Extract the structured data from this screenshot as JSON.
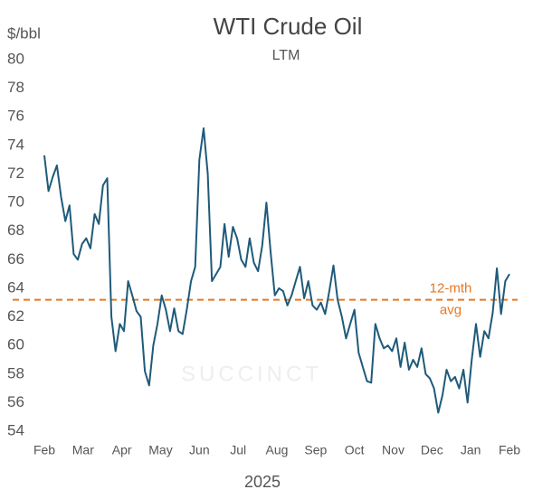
{
  "chart_data": {
    "type": "line",
    "title": "WTI Crude Oil",
    "subtitle": "LTM",
    "y_axis_label": "$/bbl",
    "x_axis_label": "2025",
    "watermark": "SUCCINCT",
    "xticks": [
      "Feb",
      "Mar",
      "Apr",
      "May",
      "Jun",
      "Jul",
      "Aug",
      "Sep",
      "Oct",
      "Nov",
      "Dec",
      "Jan",
      "Feb"
    ],
    "ylim": [
      54,
      80
    ],
    "yticks": [
      54,
      56,
      58,
      60,
      62,
      64,
      66,
      68,
      70,
      72,
      74,
      76,
      78,
      80
    ],
    "grid": false,
    "series": [
      {
        "name": "WTI Crude Oil",
        "color": "#1f5a7a",
        "values": [
          73.3,
          70.8,
          71.8,
          72.6,
          70.4,
          68.7,
          69.8,
          66.4,
          66.0,
          67.1,
          67.5,
          66.8,
          69.2,
          68.5,
          71.2,
          71.7,
          62.0,
          59.6,
          61.5,
          61.0,
          64.5,
          63.5,
          62.4,
          62.0,
          58.2,
          57.2,
          60.0,
          61.5,
          63.5,
          62.5,
          61.0,
          62.6,
          61.0,
          60.8,
          62.5,
          64.5,
          65.5,
          73.0,
          75.2,
          72.0,
          64.5,
          65.0,
          65.5,
          68.5,
          66.2,
          68.3,
          67.5,
          66.0,
          65.5,
          67.5,
          65.8,
          65.2,
          67.0,
          70.0,
          66.5,
          63.5,
          64.0,
          63.8,
          62.8,
          63.5,
          64.5,
          65.5,
          63.3,
          64.5,
          62.8,
          62.5,
          63.0,
          62.2,
          63.8,
          65.6,
          63.2,
          62.0,
          60.5,
          61.5,
          62.5,
          59.5,
          58.5,
          57.5,
          57.4,
          61.5,
          60.5,
          59.8,
          60.0,
          59.6,
          60.5,
          58.5,
          60.2,
          58.3,
          59.0,
          58.5,
          59.8,
          58.0,
          57.7,
          57.0,
          55.3,
          56.5,
          58.3,
          57.5,
          57.8,
          57.0,
          58.3,
          56.0,
          59.0,
          61.5,
          59.2,
          61.0,
          60.5,
          62.3,
          65.4,
          62.2,
          64.5,
          65.0
        ]
      }
    ],
    "average": {
      "label": "12-mth",
      "label2": "avg",
      "value": 63.2,
      "color": "#e87722"
    }
  }
}
